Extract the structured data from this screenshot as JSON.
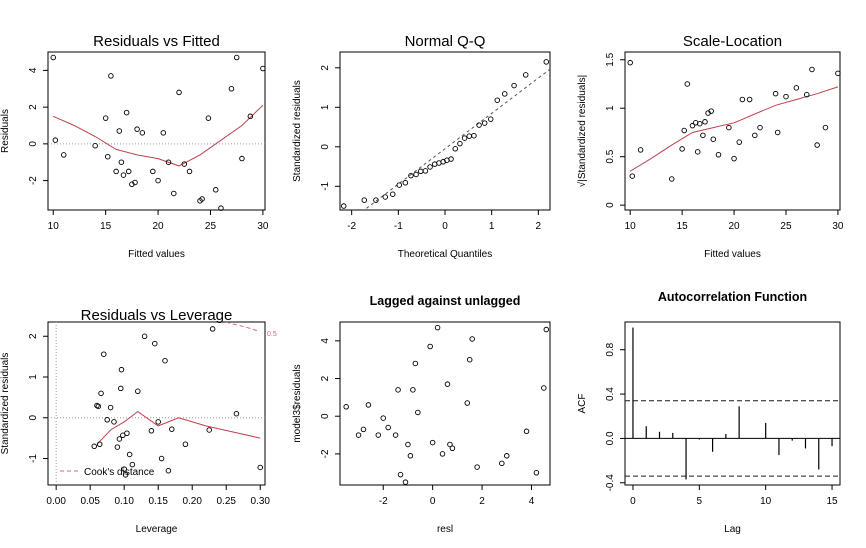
{
  "colors": {
    "axis": "#000000",
    "points": "#000000",
    "smooth": "#c0404a",
    "refline": "#9e9e9e",
    "cook": "#d06a72",
    "ci": "#1a1a1a"
  },
  "chart_data": [
    {
      "id": "resfit",
      "type": "scatter",
      "title": "Residuals vs Fitted",
      "xlabel": "Fitted values",
      "ylabel": "Residuals",
      "xlim": [
        9.5,
        30.2
      ],
      "ylim": [
        -3.6,
        5.0
      ],
      "xticks": [
        10,
        15,
        20,
        25,
        30
      ],
      "yticks": [
        -2,
        0,
        2,
        4
      ],
      "refline": {
        "y": 0,
        "style": "dotted"
      },
      "points": [
        [
          10,
          4.7
        ],
        [
          10.2,
          0.2
        ],
        [
          11,
          -0.6
        ],
        [
          14,
          -0.1
        ],
        [
          15,
          1.4
        ],
        [
          15.2,
          -0.7
        ],
        [
          15.5,
          3.7
        ],
        [
          16,
          -1.5
        ],
        [
          16.3,
          0.7
        ],
        [
          16.5,
          -1.0
        ],
        [
          16.7,
          -1.7
        ],
        [
          17,
          1.7
        ],
        [
          17.2,
          -1.5
        ],
        [
          17.5,
          -2.2
        ],
        [
          17.8,
          -2.1
        ],
        [
          18,
          0.8
        ],
        [
          18.5,
          0.6
        ],
        [
          19.5,
          -1.5
        ],
        [
          20,
          -2.0
        ],
        [
          20.5,
          0.6
        ],
        [
          21,
          -1.0
        ],
        [
          21.5,
          -2.7
        ],
        [
          22,
          2.8
        ],
        [
          22.5,
          -1.1
        ],
        [
          23,
          -1.5
        ],
        [
          24,
          -3.1
        ],
        [
          24.2,
          -3.0
        ],
        [
          24.8,
          1.4
        ],
        [
          25.5,
          -2.5
        ],
        [
          26,
          -3.5
        ],
        [
          27,
          3.0
        ],
        [
          27.5,
          4.7
        ],
        [
          28,
          -0.8
        ],
        [
          28.8,
          1.5
        ],
        [
          30,
          4.1
        ]
      ],
      "smooth": [
        [
          10,
          1.5
        ],
        [
          12,
          1.0
        ],
        [
          14,
          0.4
        ],
        [
          16,
          -0.3
        ],
        [
          18,
          -0.6
        ],
        [
          20,
          -0.8
        ],
        [
          22,
          -1.2
        ],
        [
          24,
          -0.6
        ],
        [
          26,
          0.2
        ],
        [
          28,
          1.0
        ],
        [
          30,
          2.1
        ]
      ]
    },
    {
      "id": "qq",
      "type": "scatter",
      "title": "Normal Q-Q",
      "xlabel": "Theoretical Quantiles",
      "ylabel": "Standardized residuals",
      "xlim": [
        -2.25,
        2.25
      ],
      "ylim": [
        -1.6,
        2.4
      ],
      "xticks": [
        -2,
        -1,
        0,
        1,
        2
      ],
      "yticks": [
        -1,
        0,
        1,
        2
      ],
      "refline": {
        "x1": -2.4,
        "y1": -2.2,
        "x2": 2.4,
        "y2": 2.1,
        "style": "dashed"
      },
      "points": [
        [
          -2.17,
          -1.5
        ],
        [
          -1.73,
          -1.35
        ],
        [
          -1.48,
          -1.35
        ],
        [
          -1.28,
          -1.27
        ],
        [
          -1.12,
          -1.2
        ],
        [
          -0.98,
          -0.97
        ],
        [
          -0.85,
          -0.91
        ],
        [
          -0.73,
          -0.73
        ],
        [
          -0.62,
          -0.7
        ],
        [
          -0.52,
          -0.62
        ],
        [
          -0.42,
          -0.61
        ],
        [
          -0.32,
          -0.51
        ],
        [
          -0.22,
          -0.44
        ],
        [
          -0.13,
          -0.41
        ],
        [
          -0.04,
          -0.38
        ],
        [
          0.04,
          -0.34
        ],
        [
          0.13,
          -0.31
        ],
        [
          0.22,
          -0.05
        ],
        [
          0.32,
          0.08
        ],
        [
          0.42,
          0.22
        ],
        [
          0.52,
          0.27
        ],
        [
          0.62,
          0.28
        ],
        [
          0.73,
          0.55
        ],
        [
          0.85,
          0.6
        ],
        [
          0.98,
          0.7
        ],
        [
          1.12,
          1.18
        ],
        [
          1.28,
          1.34
        ],
        [
          1.48,
          1.55
        ],
        [
          1.73,
          1.82
        ],
        [
          2.17,
          2.15
        ]
      ]
    },
    {
      "id": "scaleloc",
      "type": "scatter",
      "title": "Scale-Location",
      "xlabel": "Fitted values",
      "ylabel": "√|Standardized residuals|",
      "xlim": [
        9.5,
        30.2
      ],
      "ylim": [
        -0.05,
        1.58
      ],
      "xticks": [
        10,
        15,
        20,
        25,
        30
      ],
      "yticks": [
        0.0,
        0.5,
        1.0,
        1.5
      ],
      "points": [
        [
          10,
          1.47
        ],
        [
          10.2,
          0.3
        ],
        [
          11,
          0.57
        ],
        [
          14,
          0.27
        ],
        [
          15,
          0.58
        ],
        [
          15.2,
          0.77
        ],
        [
          15.5,
          1.25
        ],
        [
          16,
          0.82
        ],
        [
          16.3,
          0.85
        ],
        [
          16.5,
          0.55
        ],
        [
          16.7,
          0.84
        ],
        [
          17,
          0.72
        ],
        [
          17.2,
          0.86
        ],
        [
          17.5,
          0.95
        ],
        [
          17.8,
          0.97
        ],
        [
          18,
          0.68
        ],
        [
          18.5,
          0.52
        ],
        [
          19.5,
          0.8
        ],
        [
          20,
          0.48
        ],
        [
          20.5,
          0.65
        ],
        [
          20.8,
          1.09
        ],
        [
          21.5,
          1.09
        ],
        [
          22,
          0.72
        ],
        [
          22.5,
          0.8
        ],
        [
          24,
          1.15
        ],
        [
          24.2,
          0.75
        ],
        [
          25,
          1.12
        ],
        [
          26,
          1.21
        ],
        [
          27,
          1.14
        ],
        [
          27.5,
          1.4
        ],
        [
          28,
          0.62
        ],
        [
          28.8,
          0.8
        ],
        [
          30,
          1.36
        ]
      ],
      "smooth": [
        [
          10,
          0.35
        ],
        [
          12,
          0.48
        ],
        [
          14,
          0.62
        ],
        [
          16,
          0.75
        ],
        [
          18,
          0.8
        ],
        [
          20,
          0.85
        ],
        [
          22,
          0.94
        ],
        [
          24,
          1.03
        ],
        [
          26,
          1.09
        ],
        [
          28,
          1.15
        ],
        [
          30,
          1.22
        ]
      ]
    },
    {
      "id": "resleverage",
      "type": "scatter",
      "title": "Residuals vs Leverage",
      "xlabel": "Leverage",
      "ylabel": "Standardized residuals",
      "xlim": [
        -0.012,
        0.307
      ],
      "ylim": [
        -1.65,
        2.35
      ],
      "xticks": [
        0.0,
        0.05,
        0.1,
        0.15,
        0.2,
        0.25,
        0.3
      ],
      "xticklabels": [
        "0.00",
        "0.05",
        "0.10",
        "0.15",
        "0.20",
        "0.25",
        "0.30"
      ],
      "yticks": [
        -1,
        0,
        1,
        2
      ],
      "refline": {
        "y": 0,
        "x": 0,
        "style": "dotted"
      },
      "cook_label": "0.5",
      "legend": "Cook's distance",
      "cook_line": [
        [
          0.24,
          2.4
        ],
        [
          0.26,
          2.3
        ],
        [
          0.28,
          2.22
        ],
        [
          0.295,
          2.14
        ]
      ],
      "points": [
        [
          0.056,
          -0.7
        ],
        [
          0.06,
          0.3
        ],
        [
          0.062,
          0.28
        ],
        [
          0.064,
          -0.65
        ],
        [
          0.066,
          0.6
        ],
        [
          0.07,
          1.56
        ],
        [
          0.075,
          -0.05
        ],
        [
          0.08,
          0.25
        ],
        [
          0.085,
          -0.1
        ],
        [
          0.09,
          -0.72
        ],
        [
          0.093,
          -0.52
        ],
        [
          0.095,
          0.72
        ],
        [
          0.096,
          1.18
        ],
        [
          0.098,
          -0.43
        ],
        [
          0.1,
          -1.26
        ],
        [
          0.102,
          -1.4
        ],
        [
          0.104,
          -0.38
        ],
        [
          0.108,
          -0.9
        ],
        [
          0.112,
          -1.15
        ],
        [
          0.12,
          0.65
        ],
        [
          0.13,
          2.0
        ],
        [
          0.14,
          -0.32
        ],
        [
          0.145,
          1.82
        ],
        [
          0.15,
          -0.1
        ],
        [
          0.155,
          -1.0
        ],
        [
          0.16,
          1.4
        ],
        [
          0.165,
          -1.3
        ],
        [
          0.17,
          -0.28
        ],
        [
          0.19,
          -0.65
        ],
        [
          0.225,
          -0.3
        ],
        [
          0.23,
          2.18
        ],
        [
          0.265,
          0.1
        ],
        [
          0.3,
          -1.22
        ]
      ],
      "smooth": [
        [
          0.06,
          -0.65
        ],
        [
          0.08,
          -0.3
        ],
        [
          0.1,
          -0.1
        ],
        [
          0.12,
          0.15
        ],
        [
          0.15,
          -0.2
        ],
        [
          0.18,
          0.0
        ],
        [
          0.22,
          -0.2
        ],
        [
          0.26,
          -0.35
        ],
        [
          0.3,
          -0.5
        ]
      ]
    },
    {
      "id": "lagged",
      "type": "scatter",
      "title": "Lagged against unlagged",
      "xlabel": "resl",
      "ylabel": "model3$residuals",
      "xlim": [
        -3.75,
        4.75
      ],
      "ylim": [
        -3.65,
        5.0
      ],
      "xticks": [
        -2,
        0,
        2,
        4
      ],
      "yticks": [
        -2,
        0,
        2,
        4
      ],
      "points": [
        [
          -3.5,
          0.5
        ],
        [
          -3.0,
          -1.0
        ],
        [
          -2.8,
          -0.7
        ],
        [
          -2.6,
          0.6
        ],
        [
          -2.2,
          -1.0
        ],
        [
          -2.0,
          -0.1
        ],
        [
          -1.8,
          -0.6
        ],
        [
          -1.5,
          -1.0
        ],
        [
          -1.4,
          1.4
        ],
        [
          -1.3,
          -3.1
        ],
        [
          -1.1,
          -3.5
        ],
        [
          -1.0,
          -1.5
        ],
        [
          -0.9,
          -2.1
        ],
        [
          -0.8,
          1.4
        ],
        [
          -0.7,
          2.8
        ],
        [
          -0.6,
          0.2
        ],
        [
          -0.1,
          3.7
        ],
        [
          0.0,
          -1.4
        ],
        [
          0.2,
          4.7
        ],
        [
          0.4,
          -2.0
        ],
        [
          0.6,
          1.7
        ],
        [
          0.7,
          -1.5
        ],
        [
          0.8,
          -1.7
        ],
        [
          1.4,
          0.7
        ],
        [
          1.5,
          3.0
        ],
        [
          1.6,
          4.1
        ],
        [
          1.8,
          -2.7
        ],
        [
          2.8,
          -2.5
        ],
        [
          3.0,
          -2.1
        ],
        [
          3.8,
          -0.8
        ],
        [
          4.2,
          -3.0
        ],
        [
          4.5,
          1.5
        ],
        [
          4.6,
          4.6
        ]
      ]
    },
    {
      "id": "acf",
      "type": "bar",
      "title": "Autocorrelation Function",
      "xlabel": "Lag",
      "ylabel": "ACF",
      "xlim": [
        -0.6,
        15.6
      ],
      "ylim": [
        -0.42,
        1.05
      ],
      "xticks": [
        0,
        5,
        10,
        15
      ],
      "yticks": [
        -0.4,
        0.0,
        0.4,
        0.8
      ],
      "yticklabels": [
        "-0.4",
        "0.0",
        "0.4",
        "0.8"
      ],
      "ci": [
        0.34,
        -0.34
      ],
      "lags": [
        0,
        1,
        2,
        3,
        4,
        5,
        6,
        7,
        8,
        9,
        10,
        11,
        12,
        13,
        14,
        15
      ],
      "values": [
        1.0,
        0.11,
        0.06,
        0.05,
        -0.37,
        -0.01,
        -0.12,
        0.04,
        0.29,
        0.0,
        0.14,
        -0.15,
        -0.02,
        -0.09,
        -0.28,
        -0.07
      ]
    }
  ]
}
